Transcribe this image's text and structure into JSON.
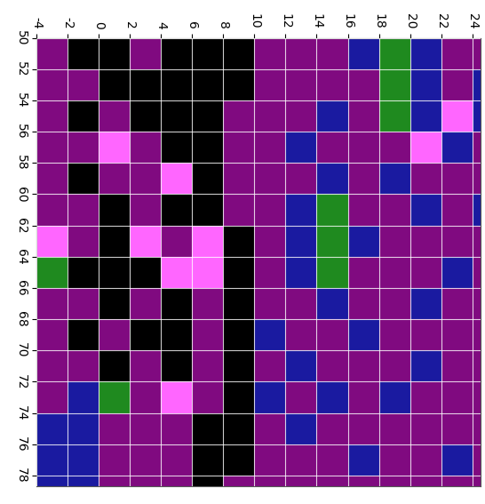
{
  "chart_data": {
    "type": "heatmap",
    "x_edges": [
      -4,
      -2,
      0,
      2,
      4,
      6,
      8,
      10,
      12,
      14,
      16,
      18,
      20,
      22,
      24,
      24.5
    ],
    "y_edges": [
      50,
      52,
      54,
      56,
      58,
      60,
      62,
      64,
      66,
      68,
      70,
      72,
      74,
      76,
      78,
      78.7
    ],
    "cells": [
      [
        1,
        0,
        0,
        1,
        0,
        0,
        0,
        1,
        1,
        1,
        2,
        3,
        2,
        1,
        1
      ],
      [
        1,
        1,
        0,
        0,
        0,
        0,
        0,
        1,
        1,
        1,
        1,
        3,
        2,
        1,
        2
      ],
      [
        1,
        0,
        1,
        0,
        0,
        0,
        1,
        1,
        1,
        2,
        1,
        3,
        2,
        4,
        2
      ],
      [
        1,
        1,
        4,
        1,
        0,
        0,
        1,
        1,
        2,
        1,
        1,
        1,
        4,
        2,
        1
      ],
      [
        1,
        0,
        1,
        1,
        4,
        0,
        1,
        1,
        1,
        2,
        1,
        2,
        1,
        1,
        1
      ],
      [
        1,
        1,
        0,
        1,
        0,
        0,
        1,
        1,
        2,
        3,
        1,
        1,
        2,
        1,
        2
      ],
      [
        4,
        1,
        0,
        4,
        1,
        4,
        0,
        1,
        2,
        3,
        2,
        1,
        1,
        1,
        1
      ],
      [
        3,
        0,
        0,
        0,
        4,
        4,
        0,
        1,
        2,
        3,
        1,
        1,
        1,
        2,
        1
      ],
      [
        1,
        1,
        0,
        1,
        0,
        1,
        0,
        1,
        1,
        2,
        1,
        1,
        2,
        1,
        1
      ],
      [
        1,
        0,
        1,
        0,
        0,
        1,
        0,
        2,
        1,
        1,
        2,
        1,
        1,
        1,
        1
      ],
      [
        1,
        1,
        0,
        1,
        0,
        1,
        0,
        1,
        2,
        1,
        1,
        1,
        2,
        1,
        1
      ],
      [
        1,
        2,
        3,
        1,
        4,
        1,
        0,
        2,
        1,
        2,
        1,
        2,
        1,
        1,
        1
      ],
      [
        2,
        2,
        1,
        1,
        1,
        0,
        0,
        1,
        2,
        1,
        1,
        1,
        1,
        1,
        1
      ],
      [
        2,
        2,
        1,
        1,
        1,
        0,
        0,
        1,
        1,
        1,
        2,
        1,
        1,
        2,
        1
      ],
      [
        2,
        2,
        1,
        1,
        1,
        0,
        1,
        1,
        1,
        1,
        1,
        1,
        1,
        1,
        1
      ]
    ],
    "colors": [
      "#000000",
      "#800a80",
      "#1a1aa0",
      "#1f8a1f",
      "#ff66ff"
    ],
    "xlim": [
      -4,
      24.5
    ],
    "ylim": [
      78.7,
      50
    ],
    "xticks": [
      -4,
      -2,
      0,
      2,
      4,
      6,
      8,
      10,
      12,
      14,
      16,
      18,
      20,
      22,
      24
    ],
    "yticks": [
      50,
      52,
      54,
      56,
      58,
      60,
      62,
      64,
      66,
      68,
      70,
      72,
      74,
      76,
      78
    ],
    "grid": true
  }
}
